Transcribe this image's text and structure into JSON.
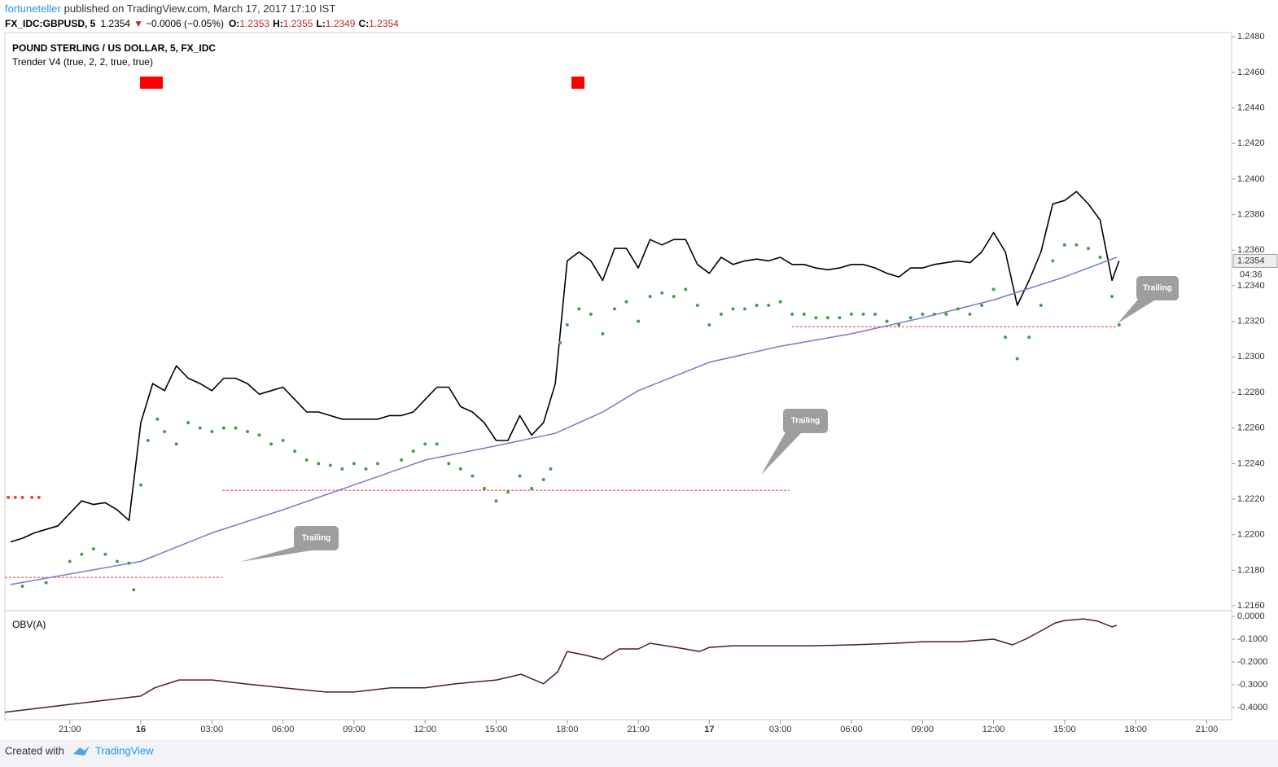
{
  "header": {
    "author": "fortuneteller",
    "published": "published on TradingView.com, March 17, 2017 17:10 IST",
    "symbol": "FX_IDC:GBPUSD, 5",
    "last": "1.2354",
    "arrow": "▼",
    "change": "−0.0006 (−0.05%)",
    "o_label": "O:",
    "o": "1.2353",
    "h_label": "H:",
    "h": "1.2355",
    "l_label": "L:",
    "l": "1.2349",
    "c_label": "C:",
    "c": "1.2354"
  },
  "footer": {
    "created": "Created with",
    "brand": "TradingView"
  },
  "chart_data": [
    {
      "type": "line",
      "title": "POUND STERLING / US DOLLAR, 5, FX_IDC",
      "subtitle": "Trender V4 (true, 2, 2, true, true)",
      "xlim": [
        -5.74,
        46.05
      ],
      "xticks": [
        {
          "value": -3,
          "label": "21:00"
        },
        {
          "value": 0,
          "label": "16"
        },
        {
          "value": 3,
          "label": "03:00"
        },
        {
          "value": 6,
          "label": "06:00"
        },
        {
          "value": 9,
          "label": "09:00"
        },
        {
          "value": 12,
          "label": "12:00"
        },
        {
          "value": 15,
          "label": "15:00"
        },
        {
          "value": 18,
          "label": "18:00"
        },
        {
          "value": 21,
          "label": "21:00"
        },
        {
          "value": 24,
          "label": "17"
        },
        {
          "value": 27,
          "label": "03:00"
        },
        {
          "value": 30,
          "label": "06:00"
        },
        {
          "value": 33,
          "label": "09:00"
        },
        {
          "value": 36,
          "label": "12:00"
        },
        {
          "value": 39,
          "label": "15:00"
        },
        {
          "value": 42,
          "label": "18:00"
        },
        {
          "value": 45,
          "label": "21:00"
        }
      ],
      "ylim": [
        1.21582,
        1.24824
      ],
      "yticks": [
        {
          "value": 1.216,
          "label": "1.2160"
        },
        {
          "value": 1.218,
          "label": "1.2180"
        },
        {
          "value": 1.22,
          "label": "1.2200"
        },
        {
          "value": 1.222,
          "label": "1.2220"
        },
        {
          "value": 1.224,
          "label": "1.2240"
        },
        {
          "value": 1.226,
          "label": "1.2260"
        },
        {
          "value": 1.228,
          "label": "1.2280"
        },
        {
          "value": 1.23,
          "label": "1.2300"
        },
        {
          "value": 1.232,
          "label": "1.2320"
        },
        {
          "value": 1.234,
          "label": "1.2340"
        },
        {
          "value": 1.236,
          "label": "1.2360"
        },
        {
          "value": 1.238,
          "label": "1.2380"
        },
        {
          "value": 1.24,
          "label": "1.2400"
        },
        {
          "value": 1.242,
          "label": "1.2420"
        },
        {
          "value": 1.244,
          "label": "1.2440"
        },
        {
          "value": 1.246,
          "label": "1.2460"
        },
        {
          "value": 1.248,
          "label": "1.2480"
        }
      ],
      "grid": false,
      "series": [
        {
          "style": "line",
          "color": "#000000",
          "x": [
            -5.5,
            -5,
            -4.5,
            -4,
            -3.5,
            -3,
            -2.5,
            -2,
            -1.5,
            -1,
            -0.5,
            0,
            0.5,
            1,
            1.5,
            2,
            2.5,
            3,
            3.5,
            4,
            4.5,
            5,
            5.5,
            6,
            6.5,
            7,
            7.5,
            8,
            8.5,
            9,
            9.5,
            10,
            10.5,
            11,
            11.5,
            12,
            12.5,
            13,
            13.5,
            14,
            14.5,
            15,
            15.5,
            16,
            16.5,
            17,
            17.5,
            18,
            18.5,
            19,
            19.5,
            20,
            20.5,
            21,
            21.5,
            22,
            22.5,
            23,
            23.5,
            24,
            24.5,
            25,
            25.5,
            26,
            26.5,
            27,
            27.5,
            28,
            28.5,
            29,
            29.5,
            30,
            30.5,
            31,
            31.5,
            32,
            32.5,
            33,
            33.5,
            34,
            34.5,
            35,
            35.5,
            36,
            36.5,
            37,
            37.5,
            38,
            38.5,
            39,
            39.5,
            40,
            40.5,
            41,
            41.3
          ],
          "values": [
            1.2196,
            1.2198,
            1.2201,
            1.2203,
            1.2205,
            1.2212,
            1.2219,
            1.2217,
            1.2218,
            1.2214,
            1.2208,
            1.2263,
            1.2285,
            1.2281,
            1.2295,
            1.2288,
            1.2285,
            1.2281,
            1.2288,
            1.2288,
            1.2285,
            1.2279,
            1.2281,
            1.2283,
            1.2276,
            1.2269,
            1.2269,
            1.2267,
            1.2265,
            1.2265,
            1.2265,
            1.2265,
            1.2267,
            1.2267,
            1.2269,
            1.2276,
            1.2283,
            1.2283,
            1.2272,
            1.2269,
            1.2263,
            1.2253,
            1.2253,
            1.2267,
            1.2256,
            1.2263,
            1.2285,
            1.2354,
            1.2359,
            1.2354,
            1.2343,
            1.2361,
            1.2361,
            1.235,
            1.2366,
            1.2363,
            1.2366,
            1.2366,
            1.2352,
            1.2347,
            1.2356,
            1.2352,
            1.2354,
            1.2355,
            1.2354,
            1.2356,
            1.2352,
            1.2352,
            1.235,
            1.2349,
            1.235,
            1.2352,
            1.2352,
            1.235,
            1.2347,
            1.2345,
            1.235,
            1.235,
            1.2352,
            1.2353,
            1.2354,
            1.2353,
            1.2359,
            1.237,
            1.2359,
            1.2329,
            1.2343,
            1.2359,
            1.2386,
            1.2388,
            1.2393,
            1.2386,
            1.2377,
            1.2343,
            1.2354
          ]
        },
        {
          "style": "line",
          "color": "#7b78c8",
          "x": [
            -5.5,
            0,
            3,
            6,
            9,
            12,
            15,
            17.5,
            19.5,
            21,
            24,
            27,
            30,
            33,
            36,
            39,
            41.2
          ],
          "values": [
            1.2172,
            1.2185,
            1.2201,
            1.2214,
            1.2228,
            1.2242,
            1.225,
            1.2257,
            1.2269,
            1.2281,
            1.2297,
            1.2306,
            1.2313,
            1.2322,
            1.2332,
            1.2345,
            1.2356
          ]
        },
        {
          "style": "dots",
          "color": "#43a047",
          "x": [
            -5,
            -4,
            -3,
            -2.5,
            -2,
            -1.5,
            -1,
            -0.5,
            -0.3,
            0,
            0.3,
            0.7,
            1,
            1.5,
            2,
            2.5,
            3,
            3.5,
            4,
            4.5,
            5,
            5.5,
            6,
            6.5,
            7,
            7.5,
            8,
            8.5,
            9,
            9.5,
            10,
            11,
            11.5,
            12,
            12.5,
            13,
            13.5,
            14,
            14.5,
            15,
            15.5,
            16,
            16.5,
            17,
            17.3,
            17.7,
            18,
            18.5,
            19,
            19.5,
            20,
            20.5,
            21,
            21.5,
            22,
            22.5,
            23,
            23.5,
            24,
            24.5,
            25,
            25.5,
            26,
            26.5,
            27,
            27.5,
            28,
            28.5,
            29,
            29.5,
            30,
            30.5,
            31,
            31.5,
            32,
            32.5,
            33,
            33.5,
            34,
            34.5,
            35,
            35.5,
            36,
            36.5,
            37,
            37.5,
            38,
            38.5,
            39,
            39.5,
            40,
            40.5,
            41,
            41.3
          ],
          "values": [
            1.2171,
            1.2173,
            1.2185,
            1.2189,
            1.2192,
            1.2189,
            1.2185,
            1.2184,
            1.2169,
            1.2228,
            1.2253,
            1.2265,
            1.2258,
            1.2251,
            1.2263,
            1.226,
            1.2258,
            1.226,
            1.226,
            1.2258,
            1.2256,
            1.2251,
            1.2253,
            1.2247,
            1.2242,
            1.224,
            1.2239,
            1.2237,
            1.224,
            1.2237,
            1.224,
            1.2242,
            1.2247,
            1.2251,
            1.2251,
            1.224,
            1.2237,
            1.2233,
            1.2226,
            1.2219,
            1.2224,
            1.2233,
            1.2226,
            1.2231,
            1.2237,
            1.2308,
            1.2318,
            1.2327,
            1.2324,
            1.2313,
            1.2327,
            1.2331,
            1.232,
            1.2334,
            1.2336,
            1.2334,
            1.2338,
            1.2329,
            1.2318,
            1.2324,
            1.2327,
            1.2327,
            1.2329,
            1.2329,
            1.2331,
            1.2324,
            1.2324,
            1.2322,
            1.2322,
            1.2322,
            1.2324,
            1.2324,
            1.2324,
            1.232,
            1.2318,
            1.2322,
            1.2324,
            1.2324,
            1.2324,
            1.2327,
            1.2324,
            1.2329,
            1.2338,
            1.2311,
            1.2299,
            1.2311,
            1.2329,
            1.2354,
            1.2363,
            1.2363,
            1.2361,
            1.2356,
            1.2334,
            1.2318
          ]
        },
        {
          "style": "dots",
          "color": "#f44336",
          "x": [
            -5.6,
            -5.3,
            -5,
            -4.6,
            -4.3
          ],
          "values": [
            1.2221,
            1.2221,
            1.2221,
            1.2221,
            1.2221
          ]
        }
      ],
      "levels": [
        {
          "value": 1.2176,
          "x": [
            -5.74,
            3.44
          ],
          "color": "#e53935"
        },
        {
          "value": 1.2225,
          "x": [
            3.44,
            27.39
          ],
          "color": "#e53935"
        },
        {
          "value": 1.2317,
          "x": [
            27.49,
            41.2
          ],
          "color": "#e53935"
        }
      ],
      "last_price": 1.2354,
      "countdown": "04:36",
      "annotations": [
        "Trailing",
        "Trailing",
        "Trailing"
      ]
    },
    {
      "type": "line",
      "title": "OBV(A)",
      "xlim": [
        -5.74,
        46.05
      ],
      "ylim": [
        -0.454,
        0.018
      ],
      "yticks": [
        {
          "value": 0,
          "label": "0.0000"
        },
        {
          "value": -0.1,
          "label": "-0.1000"
        },
        {
          "value": -0.2,
          "label": "-0.2000"
        },
        {
          "value": -0.3,
          "label": "-0.3000"
        },
        {
          "value": -0.4,
          "label": "-0.4000"
        }
      ],
      "series": [
        {
          "style": "line",
          "color": "#4a1942",
          "x": [
            -5.74,
            -2.96,
            0,
            0.58,
            1.61,
            3.02,
            4.36,
            6.01,
            7.8,
            9,
            10.55,
            12,
            13.3,
            15.02,
            16.05,
            17,
            17.6,
            18,
            18.8,
            19.5,
            20.2,
            21,
            21.5,
            22.6,
            23.6,
            24,
            25,
            27,
            28.4,
            30,
            31.9,
            33,
            34.6,
            36,
            36.8,
            37.35,
            38,
            38.6,
            39,
            39.8,
            40.4,
            41,
            41.2
          ],
          "values": [
            -0.421,
            -0.386,
            -0.35,
            -0.314,
            -0.279,
            -0.279,
            -0.296,
            -0.314,
            -0.332,
            -0.332,
            -0.314,
            -0.314,
            -0.296,
            -0.279,
            -0.254,
            -0.296,
            -0.243,
            -0.154,
            -0.171,
            -0.189,
            -0.143,
            -0.143,
            -0.118,
            -0.136,
            -0.154,
            -0.136,
            -0.129,
            -0.129,
            -0.129,
            -0.125,
            -0.118,
            -0.111,
            -0.111,
            -0.1,
            -0.125,
            -0.1,
            -0.064,
            -0.029,
            -0.018,
            -0.011,
            -0.021,
            -0.046,
            -0.039
          ]
        }
      ]
    }
  ]
}
